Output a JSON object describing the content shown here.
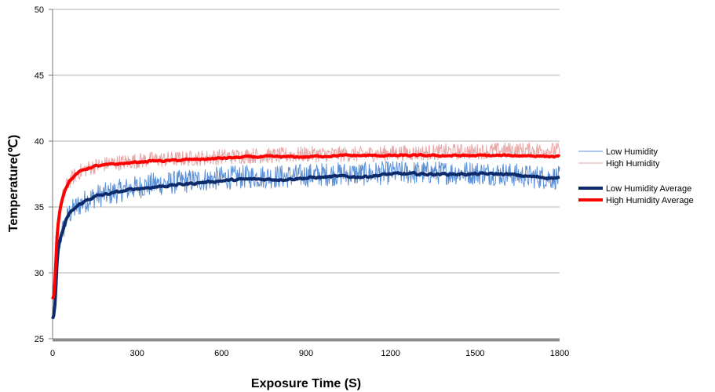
{
  "chart_data": {
    "type": "line",
    "title": "",
    "xlabel": "Exposure Time (S)",
    "ylabel": "Temperature(℃)",
    "xlim": [
      0,
      1800
    ],
    "ylim": [
      25,
      50
    ],
    "x_ticks": [
      0,
      300,
      600,
      900,
      1200,
      1500,
      1800
    ],
    "y_ticks": [
      25,
      30,
      35,
      40,
      45,
      50
    ],
    "grid": "horizontal",
    "legend_position": "right",
    "colors": {
      "low_raw": "#5b8fd6",
      "high_raw": "#e8a6a6",
      "low_avg": "#0d2a6b",
      "high_avg": "#ff0000",
      "grid": "#9a9a9a",
      "x_axis": "#8c8c8c"
    },
    "series": [
      {
        "name": "Low Humidity",
        "style": "thin",
        "noise": 0.9,
        "x": [
          0,
          5,
          10,
          15,
          20,
          30,
          45,
          60,
          90,
          120,
          150,
          200,
          250,
          300,
          350,
          400,
          500,
          600,
          700,
          800,
          900,
          1000,
          1100,
          1200,
          1300,
          1400,
          1500,
          1600,
          1700,
          1800
        ],
        "y": [
          26.5,
          26.8,
          28.0,
          30.5,
          31.8,
          32.8,
          33.8,
          34.5,
          35.1,
          35.5,
          35.8,
          36.0,
          36.3,
          36.5,
          36.7,
          36.8,
          37.0,
          37.2,
          37.3,
          37.3,
          37.4,
          37.5,
          37.5,
          37.6,
          37.6,
          37.6,
          37.6,
          37.5,
          37.3,
          37.2
        ]
      },
      {
        "name": "High Humidity",
        "style": "thin",
        "noise": 0.6,
        "x": [
          0,
          5,
          10,
          15,
          20,
          30,
          45,
          60,
          90,
          120,
          150,
          200,
          250,
          300,
          350,
          400,
          500,
          600,
          700,
          800,
          900,
          1000,
          1100,
          1200,
          1300,
          1400,
          1500,
          1600,
          1700,
          1800
        ],
        "y": [
          28.0,
          28.3,
          30.0,
          32.5,
          33.8,
          35.3,
          36.4,
          37.0,
          37.6,
          37.9,
          38.1,
          38.3,
          38.4,
          38.5,
          38.6,
          38.6,
          38.7,
          38.8,
          38.9,
          38.9,
          39.0,
          39.0,
          39.0,
          39.1,
          39.1,
          39.2,
          39.2,
          39.3,
          39.3,
          39.3
        ]
      },
      {
        "name": "Low Humidity Average",
        "style": "thick",
        "noise": 0.2,
        "x": [
          0,
          5,
          10,
          15,
          20,
          30,
          45,
          60,
          90,
          120,
          150,
          200,
          250,
          300,
          350,
          400,
          500,
          600,
          700,
          800,
          900,
          1000,
          1100,
          1200,
          1300,
          1400,
          1500,
          1600,
          1700,
          1800
        ],
        "y": [
          26.5,
          26.8,
          28.0,
          30.5,
          31.8,
          32.8,
          33.8,
          34.5,
          35.1,
          35.5,
          35.8,
          36.0,
          36.2,
          36.4,
          36.5,
          36.6,
          36.8,
          37.0,
          37.1,
          37.1,
          37.2,
          37.3,
          37.3,
          37.5,
          37.5,
          37.5,
          37.5,
          37.5,
          37.3,
          37.2
        ]
      },
      {
        "name": "High Humidity Average",
        "style": "thick",
        "noise": 0.15,
        "x": [
          0,
          5,
          10,
          15,
          20,
          30,
          45,
          60,
          90,
          120,
          150,
          200,
          250,
          300,
          350,
          400,
          500,
          600,
          700,
          800,
          900,
          1000,
          1100,
          1200,
          1300,
          1400,
          1500,
          1600,
          1700,
          1800
        ],
        "y": [
          28.0,
          28.3,
          30.0,
          32.5,
          33.8,
          35.3,
          36.4,
          37.0,
          37.6,
          37.9,
          38.1,
          38.2,
          38.3,
          38.4,
          38.5,
          38.5,
          38.6,
          38.7,
          38.8,
          38.8,
          38.8,
          38.9,
          38.9,
          38.9,
          38.9,
          38.9,
          38.9,
          38.9,
          38.9,
          38.8
        ]
      }
    ]
  }
}
